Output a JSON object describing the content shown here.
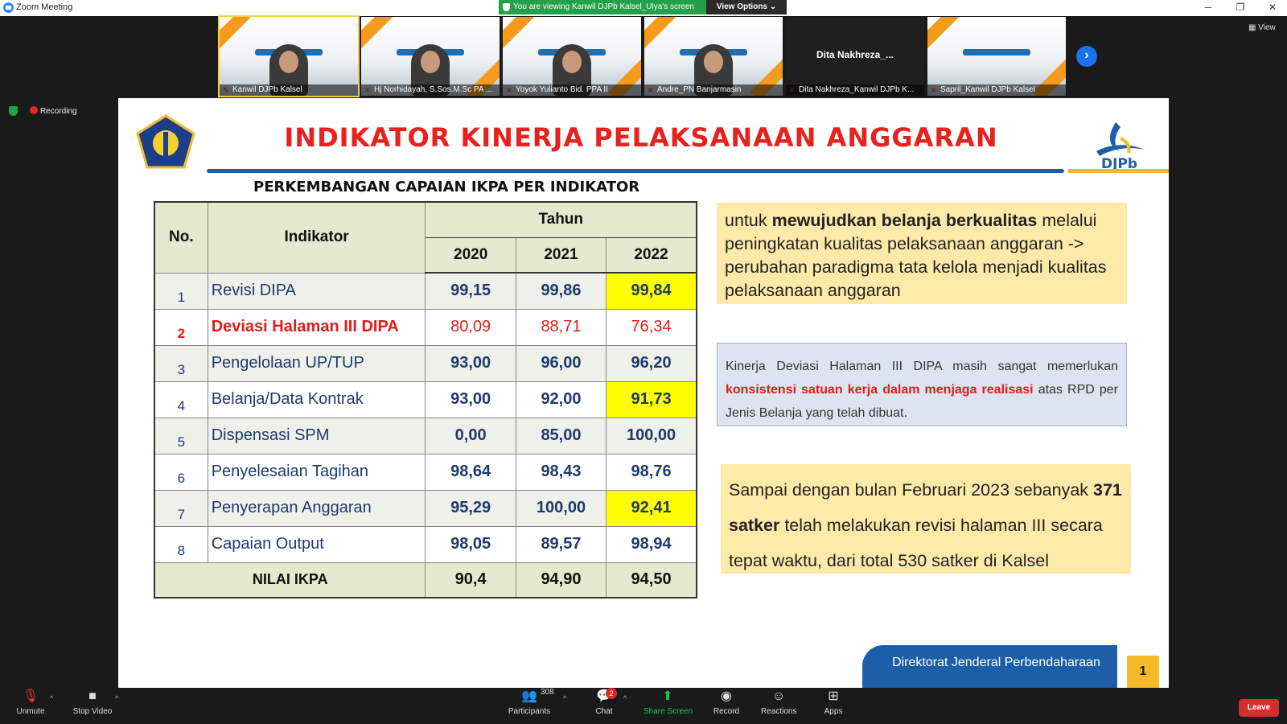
{
  "window": {
    "title": "Zoom Meeting"
  },
  "share_banner": {
    "text": "You are viewing Kanwil DJPb Kalsel_Ulya's screen",
    "view_options": "View Options ⌄"
  },
  "participants": [
    {
      "name": "Kanwil DJPb Kalsel"
    },
    {
      "name": "Hj Norhidayah, S.Sos.M.Sc PA ..."
    },
    {
      "name": "Yoyok Yulianto Bid. PPA II"
    },
    {
      "name": "Andre_PN Banjarmasin"
    },
    {
      "name": "Dita Nakhreza_Kanwil DJPb K...",
      "center_label": "Dita  Nakhreza_..."
    },
    {
      "name": "Sapril_Kanwil DJPb Kalsel"
    }
  ],
  "view_button": "View",
  "recording": "Recording",
  "slide": {
    "title": "INDIKATOR KINERJA PELAKSANAAN ANGGARAN",
    "logo_text": "DJPb",
    "subtitle": "PERKEMBANGAN CAPAIAN IKPA PER INDIKATOR",
    "table": {
      "col_no": "No.",
      "col_indikator": "Indikator",
      "col_tahun": "Tahun",
      "years": [
        "2020",
        "2021",
        "2022"
      ],
      "rows": [
        {
          "no": "1",
          "indikator": "Revisi DIPA",
          "v2020": "99,15",
          "v2021": "99,86",
          "v2022": "99,84"
        },
        {
          "no": "2",
          "indikator": "Deviasi Halaman III DIPA",
          "v2020": "80,09",
          "v2021": "88,71",
          "v2022": "76,34"
        },
        {
          "no": "3",
          "indikator": "Pengelolaan UP/TUP",
          "v2020": "93,00",
          "v2021": "96,00",
          "v2022": "96,20"
        },
        {
          "no": "4",
          "indikator": "Belanja/Data Kontrak",
          "v2020": "93,00",
          "v2021": "92,00",
          "v2022": "91,73"
        },
        {
          "no": "5",
          "indikator": "Dispensasi SPM",
          "v2020": "0,00",
          "v2021": "85,00",
          "v2022": "100,00"
        },
        {
          "no": "6",
          "indikator": "Penyelesaian Tagihan",
          "v2020": "98,64",
          "v2021": "98,43",
          "v2022": "98,76"
        },
        {
          "no": "7",
          "indikator": "Penyerapan Anggaran",
          "v2020": "95,29",
          "v2021": "100,00",
          "v2022": "92,41"
        },
        {
          "no": "8",
          "indikator": "Capaian Output",
          "v2020": "98,05",
          "v2021": "89,57",
          "v2022": "98,94"
        }
      ],
      "total": {
        "label": "NILAI IKPA",
        "v2020": "90,4",
        "v2021": "94,90",
        "v2022": "94,50"
      }
    },
    "box1": {
      "p1": "untuk ",
      "bold": "mewujudkan belanja berkualitas",
      "p2": " melalui peningkatan kualitas pelaksanaan anggaran -> perubahan paradigma tata kelola menjadi kualitas pelaksanaan anggaran"
    },
    "box2": {
      "p1": "Kinerja Deviasi Halaman III DIPA masih sangat memerlukan ",
      "red": "konsistensi satuan kerja dalam menjaga realisasi",
      "p2": " atas RPD per Jenis Belanja yang telah dibuat."
    },
    "box3": {
      "p1": "Sampai dengan bulan Februari 2023 sebanyak ",
      "bold": "371 satker",
      "p2": " telah melakukan revisi halaman III secara tepat waktu, dari total 530 satker di Kalsel"
    },
    "footer": "Direktorat Jenderal Perbendaharaan",
    "page_number": "1"
  },
  "toolbar": {
    "unmute": "Unmute",
    "stop_video": "Stop Video",
    "participants": "Participants",
    "participants_count": "308",
    "chat": "Chat",
    "chat_badge": "2",
    "share_screen": "Share Screen",
    "record": "Record",
    "reactions": "Reactions",
    "apps": "Apps",
    "leave": "Leave"
  },
  "colors": {
    "title_red": "#e8201e",
    "brand_blue": "#1c5fa8",
    "highlight_yellow": "#ffff00",
    "share_green": "#24a148"
  }
}
